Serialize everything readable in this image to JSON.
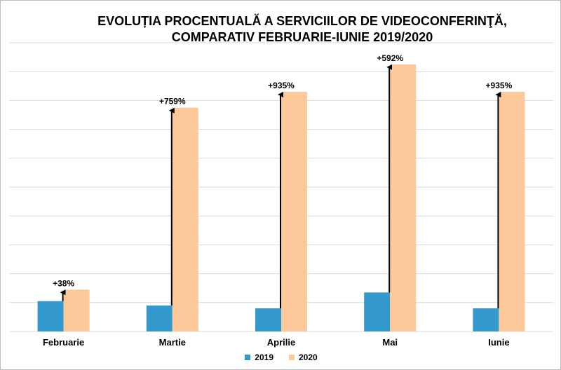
{
  "chart_data": {
    "type": "bar",
    "title_lines": [
      "EVOLUȚIA PROCENTUALĂ A SERVICIILOR DE VIDEOCONFERINŢĂ,",
      "COMPARATIV FEBRUARIE-IUNIE 2019/2020"
    ],
    "categories": [
      "Februarie",
      "Martie",
      "Aprilie",
      "Mai",
      "Iunie"
    ],
    "series": [
      {
        "name": "2019",
        "color": "#3399cc",
        "values": [
          10.5,
          9,
          8,
          13.5,
          8
        ]
      },
      {
        "name": "2020",
        "color": "#fdc99b",
        "values": [
          14.5,
          77.5,
          83,
          92.5,
          83
        ]
      }
    ],
    "annotations": [
      "+38%",
      "+759%",
      "+935%",
      "+592%",
      "+935%"
    ],
    "ylim": [
      0,
      100
    ],
    "gridlines": true,
    "legend_position": "bottom",
    "xlabel": "",
    "ylabel": ""
  }
}
